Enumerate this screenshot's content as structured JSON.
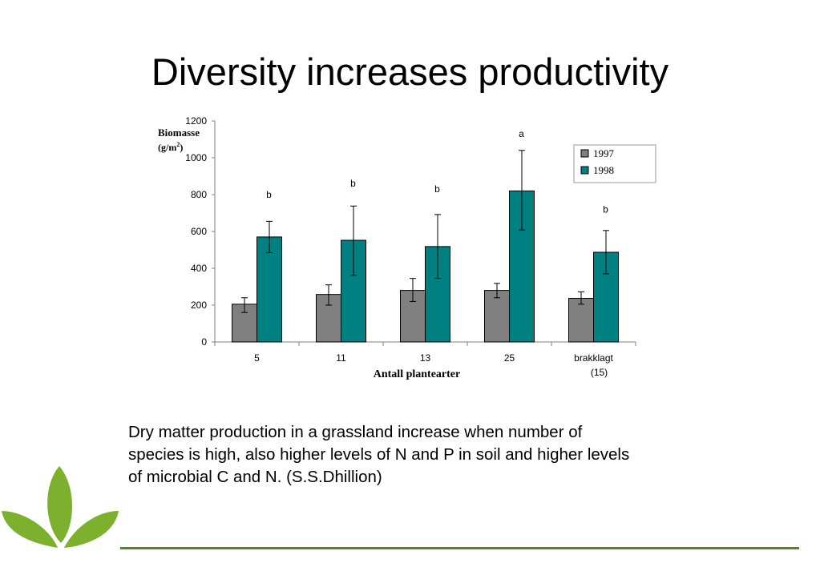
{
  "slide": {
    "title": "Diversity increases productivity",
    "caption_lines": [
      "Dry matter production in a grassland increase when number of",
      "species is high, also higher levels of N and P in soil and higher levels",
      "of microbial C and N. (S.S.Dhillion)"
    ]
  },
  "colors": {
    "series_1997": "#808080",
    "series_1998": "#008080",
    "accent_green": "#4e8a1e",
    "logo_green": "#7db02c"
  },
  "chart_data": {
    "type": "bar",
    "categories": [
      "5",
      "11",
      "13",
      "25",
      "brakklagt"
    ],
    "category_sublabels": [
      "",
      "",
      "",
      "",
      "(15)"
    ],
    "ylabel_lines": [
      "Biomasse",
      "(g/m",
      "2",
      ")"
    ],
    "xlabel": "Antall plantearter",
    "ylim": [
      0,
      1200
    ],
    "yticks": [
      0,
      200,
      400,
      600,
      800,
      1000,
      1200
    ],
    "legend_position": "top-right",
    "series": [
      {
        "name": "1997",
        "values": [
          205,
          258,
          280,
          280,
          237
        ],
        "err_low": [
          160,
          200,
          220,
          240,
          205
        ],
        "err_high": [
          240,
          310,
          345,
          318,
          272
        ]
      },
      {
        "name": "1998",
        "values": [
          570,
          552,
          518,
          820,
          487
        ],
        "err_low": [
          485,
          362,
          345,
          608,
          370
        ],
        "err_high": [
          655,
          738,
          692,
          1040,
          605
        ]
      }
    ],
    "significance_labels": [
      "b",
      "b",
      "b",
      "a",
      "b"
    ],
    "significance_anchor": [
      800,
      860,
      830,
      1130,
      720
    ]
  }
}
